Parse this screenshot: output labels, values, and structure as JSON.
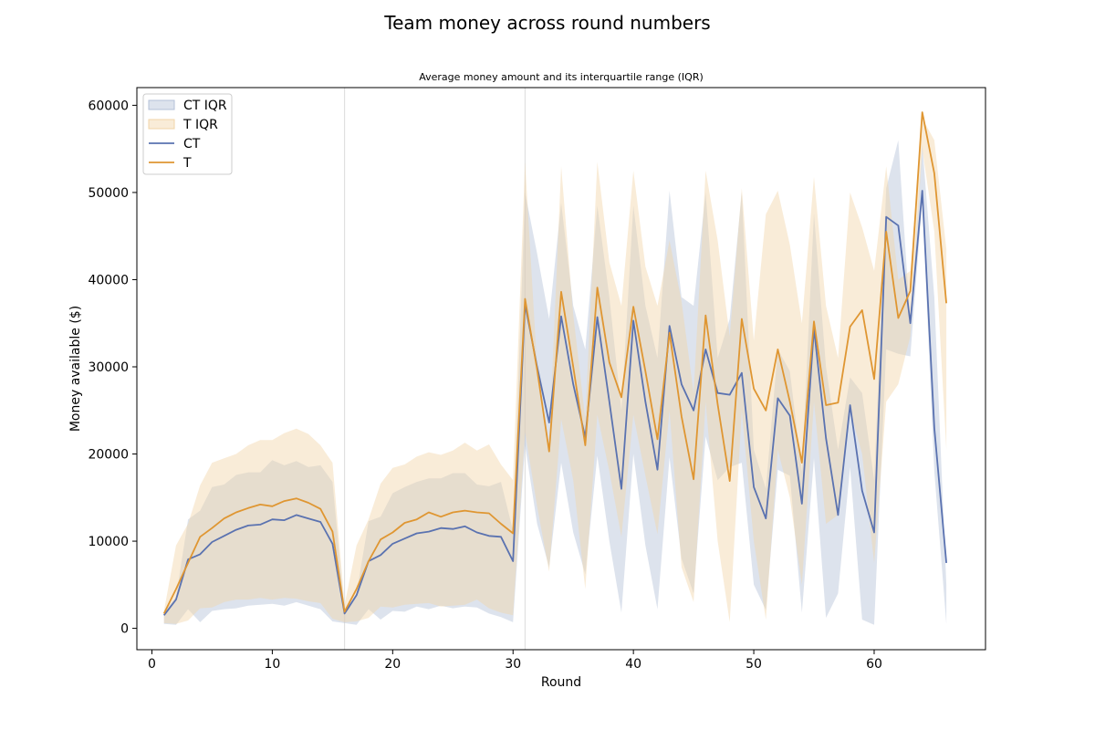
{
  "figure": {
    "title": "Team money across round numbers"
  },
  "chart_data": {
    "type": "line",
    "title": "Average money amount and its interquartile range (IQR)",
    "xlabel": "Round",
    "ylabel": "Money available ($)",
    "xlim": [
      -1.25,
      69.25
    ],
    "ylim": [
      -2450,
      62030
    ],
    "xticks": [
      0,
      10,
      20,
      30,
      40,
      50,
      60
    ],
    "yticks": [
      0,
      10000,
      20000,
      30000,
      40000,
      50000,
      60000
    ],
    "vlines": [
      16,
      31
    ],
    "legend_position": "upper left",
    "x": [
      1,
      2,
      3,
      4,
      5,
      6,
      7,
      8,
      9,
      10,
      11,
      12,
      13,
      14,
      15,
      16,
      17,
      18,
      19,
      20,
      21,
      22,
      23,
      24,
      25,
      26,
      27,
      28,
      29,
      30,
      31,
      32,
      33,
      34,
      35,
      36,
      37,
      38,
      39,
      40,
      41,
      42,
      43,
      44,
      45,
      46,
      47,
      48,
      49,
      50,
      51,
      52,
      53,
      54,
      55,
      56,
      57,
      58,
      59,
      60,
      61,
      62,
      63,
      64,
      65,
      66
    ],
    "series": [
      {
        "name": "CT",
        "color": "#5a72b0",
        "values": [
          1500,
          3300,
          7900,
          8500,
          9900,
          10600,
          11300,
          11800,
          11900,
          12500,
          12400,
          13000,
          12600,
          12200,
          9700,
          1700,
          3800,
          7700,
          8400,
          9700,
          10300,
          10900,
          11100,
          11500,
          11400,
          11700,
          11000,
          10600,
          10500,
          7700,
          37200,
          30000,
          23600,
          35800,
          28000,
          21900,
          35700,
          26000,
          16000,
          35300,
          26000,
          18200,
          34700,
          28000,
          25000,
          32000,
          27000,
          26800,
          29300,
          16200,
          12600,
          26400,
          24400,
          14300,
          34400,
          21800,
          13000,
          25600,
          15800,
          11000,
          47200,
          46200,
          35000,
          50200,
          23000,
          7500
        ]
      },
      {
        "name": "T",
        "color": "#df9632",
        "values": [
          1700,
          4500,
          7500,
          10500,
          11500,
          12600,
          13300,
          13800,
          14200,
          14000,
          14600,
          14900,
          14400,
          13700,
          11100,
          1900,
          4500,
          7700,
          10200,
          11000,
          12100,
          12500,
          13300,
          12800,
          13300,
          13500,
          13300,
          13200,
          12000,
          10900,
          37800,
          29700,
          20300,
          38600,
          30000,
          21000,
          39100,
          30500,
          26500,
          36900,
          29500,
          21700,
          33900,
          24300,
          17100,
          35900,
          25700,
          16900,
          35500,
          27500,
          25000,
          32000,
          26000,
          19000,
          35200,
          25600,
          25900,
          34600,
          36500,
          28600,
          45500,
          35600,
          38700,
          59200,
          52200,
          37300
        ]
      },
      {
        "name": "CT IQR",
        "color": "#b4c0d8",
        "lower": [
          500,
          400,
          2200,
          700,
          2000,
          2200,
          2300,
          2600,
          2700,
          2800,
          2600,
          3000,
          2600,
          2200,
          800,
          600,
          400,
          2200,
          1000,
          2000,
          1900,
          2500,
          2200,
          2600,
          2300,
          2500,
          2400,
          1700,
          1300,
          700,
          21000,
          12000,
          7000,
          19000,
          11000,
          6200,
          19800,
          10000,
          1800,
          20000,
          9500,
          2200,
          19600,
          8000,
          4000,
          22000,
          17000,
          18500,
          19000,
          5000,
          2100,
          18200,
          17500,
          1800,
          19500,
          1200,
          4000,
          18500,
          1000,
          400,
          32000,
          31500,
          31200,
          49000,
          18000,
          500
        ],
        "upper": [
          1900,
          3600,
          12500,
          13500,
          16200,
          16500,
          17600,
          17900,
          17900,
          19300,
          18700,
          19200,
          18500,
          18700,
          16800,
          1800,
          4000,
          12300,
          12800,
          15500,
          16200,
          16800,
          17200,
          17200,
          17800,
          17800,
          16500,
          16300,
          16800,
          11200,
          50000,
          43000,
          35500,
          48800,
          37000,
          32000,
          48500,
          38000,
          25000,
          48500,
          37000,
          31000,
          50200,
          38000,
          37000,
          50000,
          31000,
          35500,
          50000,
          20500,
          16000,
          32000,
          29500,
          18000,
          47600,
          30000,
          20500,
          28800,
          27000,
          17000,
          50500,
          56000,
          35000,
          55500,
          38000,
          5000
        ]
      },
      {
        "name": "T IQR",
        "color": "#f1d5a8",
        "lower": [
          600,
          500,
          900,
          2300,
          2400,
          3000,
          3300,
          3300,
          3500,
          3300,
          3500,
          3400,
          3100,
          2900,
          1100,
          700,
          800,
          1200,
          2500,
          2400,
          2700,
          2800,
          2900,
          2500,
          2600,
          2700,
          3300,
          2300,
          1800,
          1500,
          22500,
          14000,
          6500,
          24000,
          17000,
          4500,
          24500,
          18000,
          10500,
          24500,
          17500,
          10800,
          25000,
          7000,
          3000,
          26000,
          10000,
          700,
          25000,
          10000,
          1000,
          20500,
          15000,
          5000,
          26000,
          12000,
          13000,
          25000,
          20000,
          7500,
          26000,
          28000,
          33500,
          55000,
          45500,
          20500
        ],
        "upper": [
          2000,
          9500,
          12000,
          16400,
          19000,
          19500,
          20000,
          21000,
          21600,
          21600,
          22400,
          22900,
          22300,
          21000,
          19000,
          2700,
          9500,
          12500,
          16600,
          18400,
          18800,
          19700,
          20200,
          19900,
          20400,
          21300,
          20400,
          21100,
          18800,
          17000,
          53500,
          30000,
          21000,
          53000,
          36000,
          24000,
          53500,
          42000,
          37000,
          52500,
          41500,
          37000,
          44500,
          37500,
          27000,
          52500,
          44500,
          33500,
          50500,
          33000,
          47500,
          50200,
          44000,
          35000,
          51800,
          37000,
          31000,
          50000,
          46000,
          41000,
          53000,
          40000,
          41000,
          58500,
          56000,
          43500
        ]
      }
    ]
  }
}
